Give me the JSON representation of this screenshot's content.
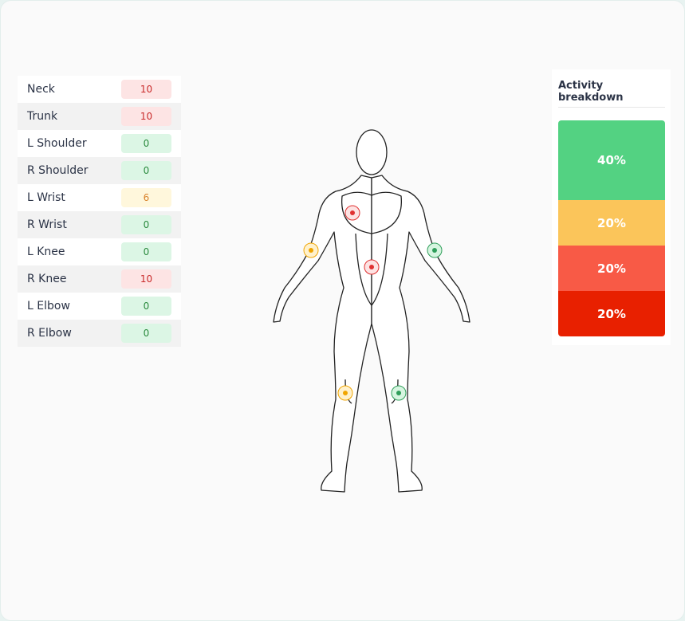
{
  "table": {
    "rows": [
      {
        "label": "Neck",
        "score": 10
      },
      {
        "label": "Trunk",
        "score": 10
      },
      {
        "label": "L Shoulder",
        "score": 0
      },
      {
        "label": "R Shoulder",
        "score": 0
      },
      {
        "label": "L Wrist",
        "score": 6
      },
      {
        "label": "R Wrist",
        "score": 0
      },
      {
        "label": "L Knee",
        "score": 0
      },
      {
        "label": "R Knee",
        "score": 10
      },
      {
        "label": "L Elbow",
        "score": 0
      },
      {
        "label": "R Elbow",
        "score": 0
      }
    ]
  },
  "breakdown": {
    "title": "Activity breakdown",
    "segments": [
      "40%",
      "20%",
      "20%",
      "20%"
    ]
  }
}
